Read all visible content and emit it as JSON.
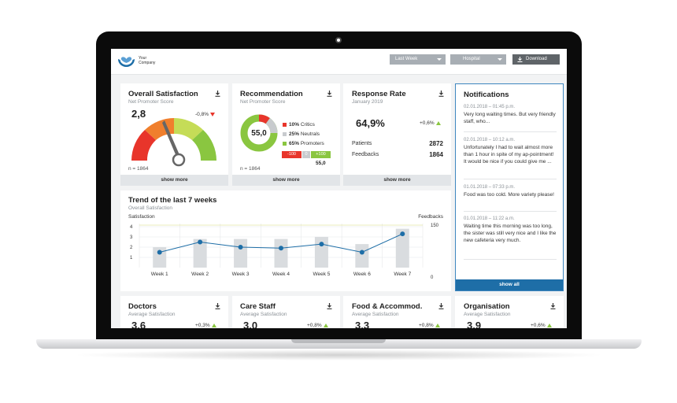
{
  "header": {
    "company_line1": "Your",
    "company_line2": "Company",
    "period_label": "Last Week",
    "location_label": "Hospital",
    "download_label": "Download"
  },
  "overall": {
    "title": "Overall Satisfaction",
    "subtitle": "Net Promoter Score",
    "value": "2,8",
    "delta": "-0,8%",
    "delta_direction": "down",
    "n": "n = 1864",
    "show_more": "show more",
    "gauge_level": 2.8,
    "gauge_max": 5
  },
  "recommendation": {
    "title": "Recommendation",
    "subtitle": "Net Promoter Score",
    "value": "55,0",
    "critics": "10%",
    "critics_label": "Critics",
    "neutrals": "25%",
    "neutrals_label": "Neutrals",
    "promoters": "65%",
    "promoters_label": "Promoters",
    "scale_min": "-100",
    "scale_zero": "0",
    "scale_max": "+100",
    "scale_value": "55,0",
    "n": "n = 1864",
    "show_more": "show more",
    "colors": {
      "critics": "#e8352b",
      "neutrals": "#c8cbce",
      "promoters": "#8ac640"
    }
  },
  "response": {
    "title": "Response Rate",
    "subtitle": "January 2019",
    "value": "64,9%",
    "delta": "+0,6%",
    "delta_direction": "up",
    "patients_label": "Patients",
    "patients_value": "2872",
    "feedbacks_label": "Feedbacks",
    "feedbacks_value": "1864",
    "show_more": "show more"
  },
  "trend": {
    "title": "Trend of the last 7 weeks",
    "subtitle": "Overall Satisfaction"
  },
  "chart_data": {
    "type": "bar",
    "ylabel": "Satisfaction",
    "y2label": "Feedbacks",
    "categories": [
      "Week 1",
      "Week 2",
      "Week 3",
      "Week 4",
      "Week 5",
      "Week 6",
      "Week 7"
    ],
    "ylim": [
      0,
      4
    ],
    "yticks": [
      "1",
      "2",
      "3",
      "4"
    ],
    "y2ticks": [
      "0",
      "150"
    ],
    "y2lim": [
      0,
      150
    ],
    "grid": true,
    "series": [
      {
        "values": [
          2.0,
          2.8,
          2.8,
          2.8,
          3.0,
          2.3,
          3.8
        ]
      },
      {
        "values": [
          1.5,
          2.5,
          2.0,
          1.9,
          2.3,
          1.5,
          3.3
        ]
      }
    ]
  },
  "notifications": {
    "title": "Notifications",
    "show_all": "show all",
    "items": [
      {
        "date": "02.01.2018 – 01:45 p.m.",
        "text": "Very long waiting times. But very friendly staff, who..."
      },
      {
        "date": "02.01.2018 – 10:12 a.m.",
        "text": "Unfortunately I had to wait almost more than 1 hour in spite of my ap-pointment! It would be nice if you could give me ..."
      },
      {
        "date": "01.01.2018 – 07:33 p.m.",
        "text": "Food was too cold. More variety please!"
      },
      {
        "date": "01.01.2018 – 11:22 a.m.",
        "text": "Waiting time this morning was too long, the sister was still very nice and I like the new cafeteria very much."
      }
    ]
  },
  "bottom_cards": [
    {
      "title": "Doctors",
      "subtitle": "Average Satisfaction",
      "value": "3,6",
      "delta": "+0,3%"
    },
    {
      "title": "Care Staff",
      "subtitle": "Average Satisfaction",
      "value": "3,0",
      "delta": "+0,8%"
    },
    {
      "title": "Food & Accommod.",
      "subtitle": "Average Satisfaction",
      "value": "3,3",
      "delta": "+0,8%"
    },
    {
      "title": "Organisation",
      "subtitle": "Average Satisfaction",
      "value": "3,9",
      "delta": "+0,6%"
    }
  ],
  "colors": {
    "accent_blue": "#1e6ea7",
    "negative": "#e8352b",
    "positive": "#8ac640",
    "gauge": [
      "#e8352b",
      "#f07f2d",
      "#c5dc57",
      "#8ac640"
    ]
  }
}
